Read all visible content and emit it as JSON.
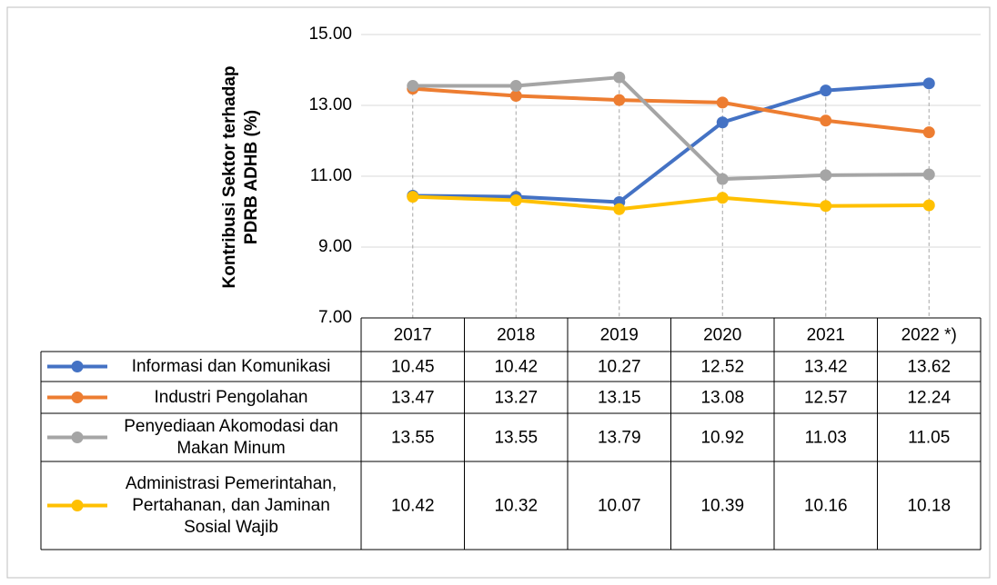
{
  "chart_data": {
    "type": "line",
    "y_label": [
      "Kontribusi Sektor  terhadap",
      "PDRB ADHB (%)"
    ],
    "categories": [
      "2017",
      "2018",
      "2019",
      "2020",
      "2021",
      "2022 *)"
    ],
    "series": [
      {
        "name": "Informasi dan Komunikasi",
        "color": "#4472c4",
        "values": [
          10.45,
          10.42,
          10.27,
          12.52,
          13.42,
          13.62
        ]
      },
      {
        "name": "Industri Pengolahan",
        "color": "#ed7d31",
        "values": [
          13.47,
          13.27,
          13.15,
          13.08,
          12.57,
          12.24
        ]
      },
      {
        "name": "Penyediaan Akomodasi dan Makan Minum",
        "color": "#a5a5a5",
        "values": [
          13.55,
          13.55,
          13.79,
          10.92,
          11.03,
          11.05
        ]
      },
      {
        "name": "Administrasi Pemerintahan, Pertahanan, dan Jaminan Sosial Wajib",
        "color": "#ffc000",
        "values": [
          10.42,
          10.32,
          10.07,
          10.39,
          10.16,
          10.18
        ]
      }
    ],
    "ylim": [
      7,
      15
    ],
    "yticks": [
      {
        "value": 7,
        "label": "7.00"
      },
      {
        "value": 9,
        "label": "9.00"
      },
      {
        "value": 11,
        "label": "11.00"
      },
      {
        "value": 13,
        "label": "13.00"
      },
      {
        "value": 15,
        "label": "15.00"
      }
    ],
    "grid": true,
    "drop_lines": true,
    "data_table": true
  }
}
